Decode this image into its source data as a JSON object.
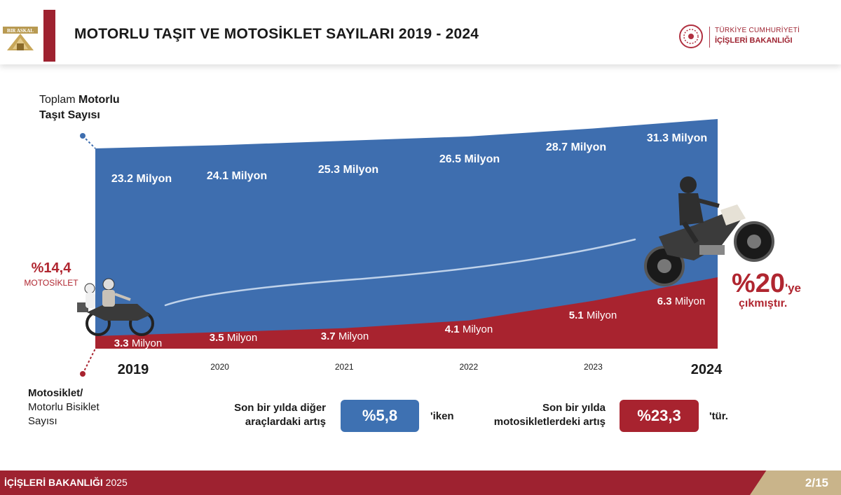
{
  "header": {
    "title_bold": "MOTORLU TAŞIT VE MOTOSİKLET",
    "title_rest": " SAYILARI 2019 - 2024",
    "logo_left_text": "BIR ASKAL",
    "ministry_line1": "TÜRKİYE CUMHURİYETİ",
    "ministry_line2": "İÇİŞLERİ BAKANLIĞI"
  },
  "labels": {
    "total_prefix": "Toplam ",
    "total_bold1": "Motorlu",
    "total_bold2": "Taşıt Sayısı",
    "moto_pct": "%14,4",
    "moto_pct_sub": "MOTOSİKLET",
    "moto_bold": "Motosiklet/",
    "moto_line2": "Motorlu Bisiklet",
    "moto_line3": "Sayısı",
    "pct20_big": "%20",
    "pct20_suffix": "'ye",
    "pct20_line2": "çıkmıştır."
  },
  "stats": {
    "left_line1": "Son bir yılda diğer",
    "left_line2": "araçlardaki artış",
    "left_value": "%5,8",
    "left_suffix": "'iken",
    "right_line1": "Son bir yılda",
    "right_line2": "motosikletlerdeki artış",
    "right_value": "%23,3",
    "right_suffix": "'tür."
  },
  "footer": {
    "ministry_bold": "İÇİŞLERİ BAKANLIĞI",
    "year": " 2025",
    "page": "2/15"
  },
  "colors": {
    "total_area": "#3e6eaf",
    "moto_area": "#a8232f",
    "accent_red": "#b02630",
    "brand_red": "#9e2230",
    "footer_tab": "#c9b48a"
  },
  "chart_data": {
    "type": "area",
    "x": [
      "2019",
      "2020",
      "2021",
      "2022",
      "2023",
      "2024"
    ],
    "series": [
      {
        "values": [
          23.2,
          24.1,
          25.3,
          26.5,
          28.7,
          31.3
        ],
        "labels": [
          "23.2 Milyon",
          "24.1 Milyon",
          "25.3 Milyon",
          "26.5 Milyon",
          "28.7 Milyon",
          "31.3 Milyon"
        ]
      },
      {
        "values": [
          3.3,
          3.5,
          3.7,
          4.1,
          5.1,
          6.3
        ],
        "labels": [
          "3.3 Milyon",
          "3.5 Milyon",
          "3.7 Milyon",
          "4.1 Milyon",
          "5.1 Milyon",
          "6.3 Milyon"
        ]
      }
    ],
    "title": "MOTORLU TAŞIT VE MOTOSİKLET SAYILARI 2019 - 2024"
  }
}
